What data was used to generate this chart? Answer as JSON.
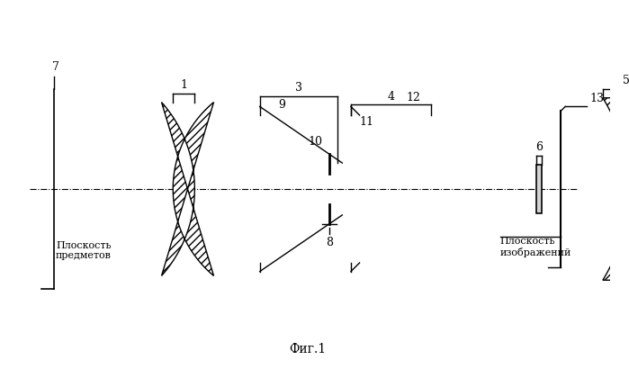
{
  "title": "Фиг.1",
  "label_object": "Плоскость\nпредметов",
  "label_image": "Плоскость\nизображений",
  "bg_color": "#ffffff",
  "line_color": "#000000",
  "figsize": [
    6.99,
    4.2
  ],
  "dpi": 100
}
